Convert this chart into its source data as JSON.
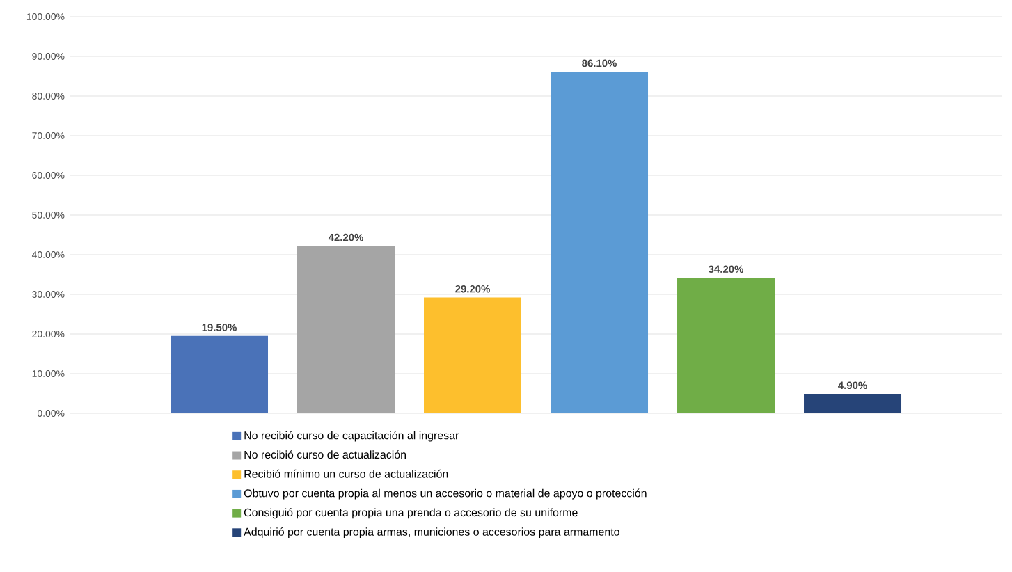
{
  "chart_data": {
    "type": "bar",
    "categories": [
      null
    ],
    "series": [
      {
        "name": "No recibió curso de capacitación al ingresar",
        "color": "#4a72b8",
        "values": [
          19.5
        ],
        "value_labels": [
          "19.50%"
        ]
      },
      {
        "name": "No recibió curso de actualización",
        "color": "#a5a5a5",
        "values": [
          42.2
        ],
        "value_labels": [
          "42.20%"
        ]
      },
      {
        "name": "Recibió mínimo un curso de actualización",
        "color": "#fdbf2d",
        "values": [
          29.2
        ],
        "value_labels": [
          "29.20%"
        ]
      },
      {
        "name": "Obtuvo por cuenta propia al menos un accesorio o material de apoyo o protección",
        "color": "#5b9bd5",
        "values": [
          86.1
        ],
        "value_labels": [
          "86.10%"
        ]
      },
      {
        "name": "Consiguió por cuenta propia una prenda o accesorio de su uniforme",
        "color": "#70ad47",
        "values": [
          34.2
        ],
        "value_labels": [
          "34.20%"
        ]
      },
      {
        "name": "Adquirió por cuenta propia armas, municiones o accesorios para armamento",
        "color": "#264478",
        "values": [
          4.9
        ],
        "value_labels": [
          "4.90%"
        ]
      }
    ],
    "ylim": [
      0,
      100
    ],
    "yticks": [
      {
        "value": 0,
        "label": "0.00%"
      },
      {
        "value": 10,
        "label": "10.00%"
      },
      {
        "value": 20,
        "label": "20.00%"
      },
      {
        "value": 30,
        "label": "30.00%"
      },
      {
        "value": 40,
        "label": "40.00%"
      },
      {
        "value": 50,
        "label": "50.00%"
      },
      {
        "value": 60,
        "label": "60.00%"
      },
      {
        "value": 70,
        "label": "70.00%"
      },
      {
        "value": 80,
        "label": "80.00%"
      },
      {
        "value": 90,
        "label": "90.00%"
      },
      {
        "value": 100,
        "label": "100.00%"
      }
    ],
    "grid": "y",
    "legend": "bottom"
  }
}
